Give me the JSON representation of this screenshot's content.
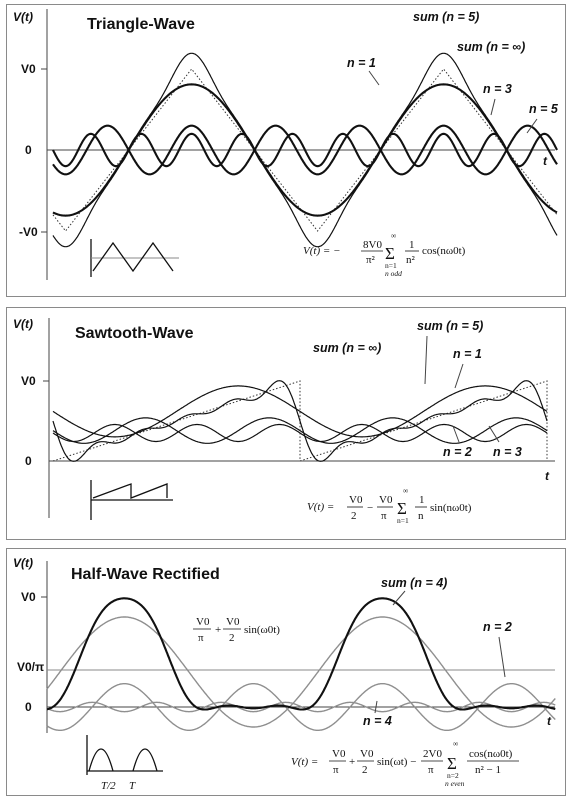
{
  "chart_data": [
    {
      "type": "line",
      "title": "Triangle-Wave",
      "ylabel": "V(t)",
      "xlabel": "t",
      "ytick_labels": [
        "V0",
        "0",
        "-V0"
      ],
      "period_t_over_T": 1,
      "series": [
        {
          "name": "n = 1",
          "style": "thick"
        },
        {
          "name": "n = 3",
          "style": "thick"
        },
        {
          "name": "n = 5",
          "style": "thick"
        },
        {
          "name": "sum (n = 5)",
          "style": "thin"
        },
        {
          "name": "sum (n = ∞)",
          "style": "dotted"
        }
      ],
      "labels": {
        "n1": "n = 1",
        "n3": "n = 3",
        "n5": "n = 5",
        "sum_n5": "sum  (n = 5)",
        "sum_inf": "sum  (n = ∞)"
      },
      "formula": {
        "lhs": "V(t) = −",
        "coef_num": "8V0",
        "coef_den": "π²",
        "sum_top": "∞",
        "sum_bottom": "n=1",
        "sum_cond": "n odd",
        "term_num": "1",
        "term_den": "n²",
        "term_tail": "cos(nω0t)"
      }
    },
    {
      "type": "line",
      "title": "Sawtooth-Wave",
      "ylabel": "V(t)",
      "xlabel": "t",
      "ytick_labels": [
        "V0",
        "0"
      ],
      "series": [
        {
          "name": "n = 1",
          "style": "thin"
        },
        {
          "name": "n = 2",
          "style": "thin"
        },
        {
          "name": "n = 3",
          "style": "thin"
        },
        {
          "name": "sum (n = 5)",
          "style": "thin"
        },
        {
          "name": "sum (n = ∞)",
          "style": "dotted"
        }
      ],
      "labels": {
        "n1": "n = 1",
        "n2": "n = 2",
        "n3": "n = 3",
        "sum_n5": "sum  (n = 5)",
        "sum_inf": "sum  (n = ∞)"
      },
      "formula": {
        "lhs": "V(t) =",
        "a_num": "V0",
        "a_den": "2",
        "minus": "−",
        "b_num": "V0",
        "b_den": "π",
        "sum_top": "∞",
        "sum_bottom": "n=1",
        "term_num": "1",
        "term_den": "n",
        "term_tail": "sin(nω0t)"
      }
    },
    {
      "type": "line",
      "title": "Half-Wave Rectified",
      "ylabel": "V(t)",
      "xlabel": "t",
      "ytick_labels": [
        "V0",
        "V0/π",
        "0"
      ],
      "inset_ticks": [
        "T/2",
        "T"
      ],
      "series": [
        {
          "name": "V0/π + (V0/2)sin(ω0t)",
          "style": "grey"
        },
        {
          "name": "n = 2",
          "style": "grey"
        },
        {
          "name": "n = 4",
          "style": "grey"
        },
        {
          "name": "sum (n = 4)",
          "style": "thick"
        }
      ],
      "labels": {
        "n2": "n = 2",
        "n4": "n = 4",
        "sum_n4": "sum  (n = 4)"
      },
      "fund_label": {
        "a_num": "V0",
        "a_den": "π",
        "plus": "+",
        "b_num": "V0",
        "b_den": "2",
        "tail": "sin(ω0t)"
      },
      "formula": {
        "lhs": "V(t) =",
        "a_num": "V0",
        "a_den": "π",
        "plus": "+",
        "b_num": "V0",
        "b_den": "2",
        "mid": "sin(ωt) −",
        "c_num": "2V0",
        "c_den": "π",
        "sum_top": "∞",
        "sum_bottom": "n=2",
        "sum_cond": "n  even",
        "term_num": "cos(nω0t)",
        "term_den": "n² − 1"
      }
    }
  ]
}
